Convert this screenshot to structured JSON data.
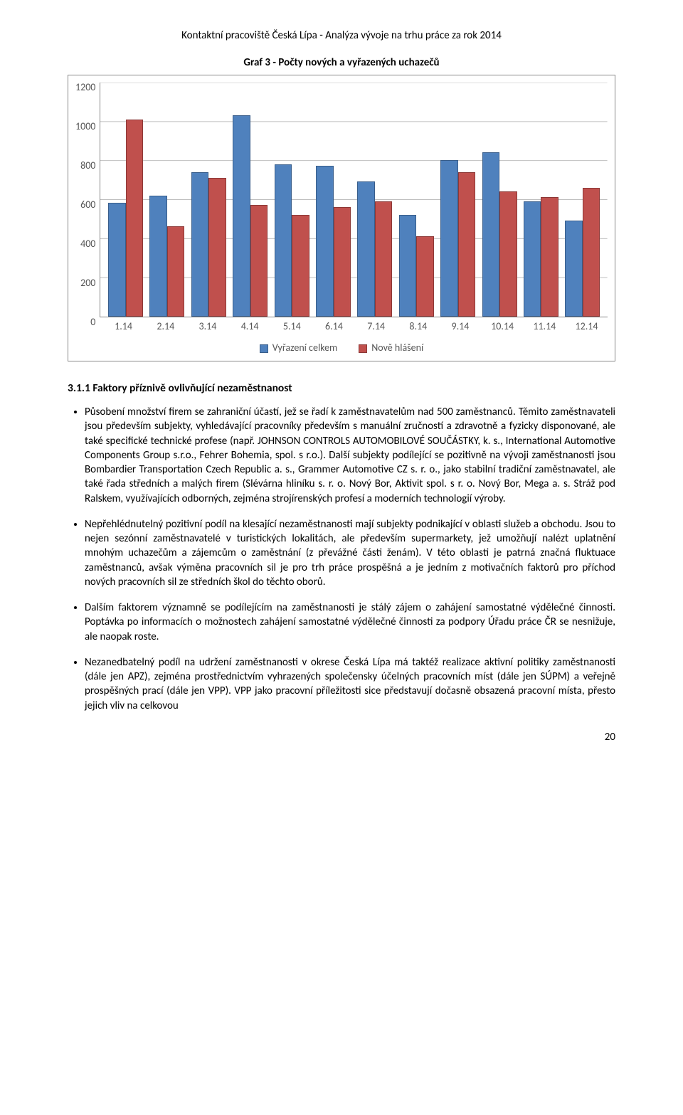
{
  "header": "Kontaktní pracoviště Česká Lípa - Analýza vývoje na trhu práce za rok 2014",
  "chart": {
    "type": "bar",
    "title": "Graf 3 - Počty nových a vyřazených uchazečů",
    "categories": [
      "1.14",
      "2.14",
      "3.14",
      "4.14",
      "5.14",
      "6.14",
      "7.14",
      "8.14",
      "9.14",
      "10.14",
      "11.14",
      "12.14"
    ],
    "series": [
      {
        "name": "Vyřazení celkem",
        "color": "#4f81bd",
        "outline": "#385d8a",
        "values": [
          580,
          620,
          740,
          1030,
          780,
          770,
          690,
          520,
          800,
          840,
          590,
          490
        ]
      },
      {
        "name": "Nově hlášení",
        "color": "#c0504d",
        "outline": "#8c3836",
        "values": [
          1010,
          460,
          710,
          570,
          520,
          560,
          590,
          410,
          740,
          640,
          610,
          660
        ]
      }
    ],
    "ylim": [
      0,
      1200
    ],
    "ytick_step": 200,
    "yticks": [
      0,
      200,
      400,
      600,
      800,
      1000,
      1200
    ],
    "background_color": "#ffffff",
    "grid_color": "#bfbfbf",
    "axis_color": "#888888",
    "label_fontsize": 14,
    "title_fontsize": 15,
    "bar_width": 0.42
  },
  "section": {
    "number": "3.1.1",
    "heading": "3.1.1   Faktory příznivě ovlivňující nezaměstnanost"
  },
  "bullets": [
    "Působení množství firem se zahraniční účastí, jež se řadí k zaměstnavatelům nad 500 zaměstnanců. Těmito zaměstnavateli jsou především subjekty, vyhledávající pracovníky především s manuální zručností a zdravotně a fyzicky disponované, ale také specifické technické profese (např. JOHNSON CONTROLS AUTOMOBILOVÉ SOUČÁSTKY, k. s., International Automotive Components Group s.r.o., Fehrer Bohemia, spol. s r.o.). Další subjekty podílející se pozitivně na vývoji zaměstnanosti jsou Bombardier Transportation Czech Republic a. s., Grammer Automotive CZ s. r. o., jako stabilní tradiční zaměstnavatel, ale také řada středních a malých firem (Slévárna hliníku s. r. o. Nový Bor, Aktivit spol. s r. o. Nový Bor, Mega a. s. Stráž pod Ralskem, využívajících odborných, zejména strojírenských profesí a moderních technologií výroby.",
    "Nepřehlédnutelný pozitivní podíl na klesající nezaměstnanosti mají subjekty podnikající v oblasti služeb a obchodu. Jsou to nejen sezónní zaměstnavatelé v turistických lokalitách, ale především supermarkety, jež umožňují nalézt uplatnění mnohým uchazečům a zájemcům o zaměstnání (z převážné části ženám). V této oblasti je patrná značná fluktuace zaměstnanců, avšak výměna pracovních sil je pro trh práce prospěšná a je jedním z motivačních faktorů pro příchod nových pracovních sil ze středních škol do těchto oborů.",
    "Dalším faktorem významně se podílejícím na zaměstnanosti je stálý zájem o zahájení samostatné výdělečné činnosti. Poptávka po informacích o možnostech zahájení samostatné výdělečné činnosti za podpory Úřadu práce ČR se nesnižuje, ale naopak roste.",
    "Nezanedbatelný podíl na udržení zaměstnanosti v okrese Česká Lípa má taktéž realizace aktivní politiky zaměstnanosti (dále jen APZ), zejména prostřednictvím vyhrazených společensky účelných pracovních míst (dále jen SÚPM) a veřejně prospěšných prací (dále jen VPP). VPP jako pracovní příležitosti sice představují dočasně obsazená pracovní místa, přesto jejich vliv na celkovou"
  ],
  "page_number": "20"
}
